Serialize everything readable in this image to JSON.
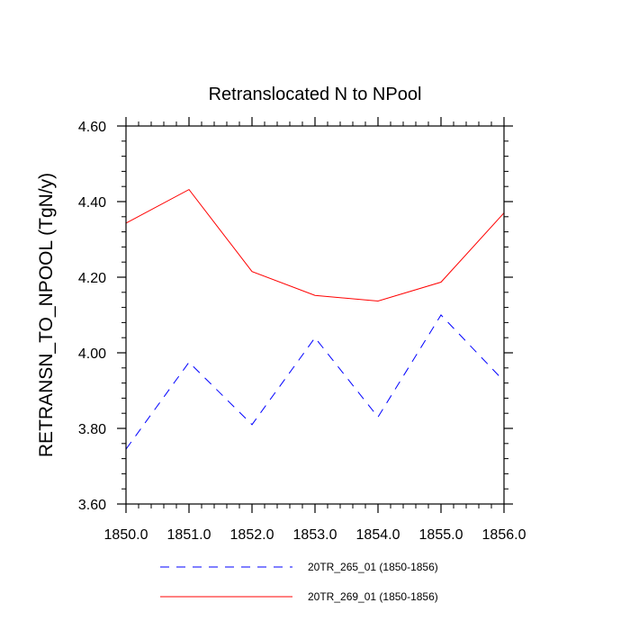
{
  "chart_data": {
    "type": "line",
    "title": "Retranslocated N to NPool",
    "xlabel": "",
    "ylabel": "RETRANSN_TO_NPOOL  (TgN/y)",
    "xlim": [
      1850,
      1856
    ],
    "ylim": [
      3.6,
      4.6
    ],
    "x": [
      1850,
      1851,
      1852,
      1853,
      1854,
      1855,
      1856
    ],
    "x_tick_labels": [
      "1850.0",
      "1851.0",
      "1852.0",
      "1853.0",
      "1854.0",
      "1855.0",
      "1856.0"
    ],
    "y_ticks": [
      3.6,
      3.8,
      4.0,
      4.2,
      4.4,
      4.6
    ],
    "y_tick_labels": [
      "3.60",
      "3.80",
      "4.00",
      "4.20",
      "4.40",
      "4.60"
    ],
    "grid": false,
    "legend_position": "bottom",
    "series": [
      {
        "name": "20TR_265_01 (1850-1856)",
        "color": "#0000ff",
        "style": "dashed",
        "values": [
          3.745,
          3.975,
          3.81,
          4.04,
          3.83,
          4.1,
          3.925
        ]
      },
      {
        "name": "20TR_269_01 (1850-1856)",
        "color": "#ff0000",
        "style": "solid",
        "values": [
          4.343,
          4.432,
          4.215,
          4.152,
          4.137,
          4.187,
          4.37
        ]
      }
    ]
  }
}
